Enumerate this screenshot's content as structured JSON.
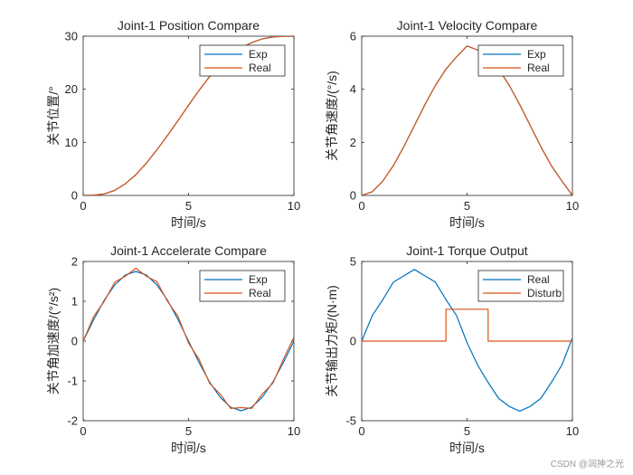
{
  "colors": {
    "exp": "#0072BD",
    "real": "#D95319",
    "axis": "#262626",
    "bg": "#ffffff"
  },
  "watermark": "CSDN @润抻之光",
  "chart_data": [
    {
      "id": "position",
      "type": "line",
      "title": "Joint-1 Position Compare",
      "xlabel": "时间/s",
      "ylabel": "关节位置/°",
      "xlim": [
        0,
        10
      ],
      "ylim": [
        0,
        30
      ],
      "xticks": [
        0,
        5,
        10
      ],
      "yticks": [
        0,
        10,
        20,
        30
      ],
      "legend": {
        "placement": "top-right",
        "entries": [
          "Exp",
          "Real"
        ]
      },
      "series": [
        {
          "name": "Exp",
          "color": "#0072BD",
          "x": [
            0,
            0.5,
            1,
            1.5,
            2,
            2.5,
            3,
            3.5,
            4,
            4.5,
            5,
            5.5,
            6,
            6.5,
            7,
            7.5,
            8,
            8.5,
            9,
            9.5,
            10
          ],
          "y": [
            0,
            0.04,
            0.29,
            0.96,
            2.2,
            3.9,
            6.1,
            8.6,
            11.3,
            14.1,
            17.0,
            19.8,
            22.4,
            24.6,
            26.4,
            27.8,
            28.8,
            29.5,
            29.85,
            29.98,
            30.0
          ]
        },
        {
          "name": "Real",
          "color": "#D95319",
          "x": [
            0,
            0.5,
            1,
            1.5,
            2,
            2.5,
            3,
            3.5,
            4,
            4.5,
            5,
            5.5,
            6,
            6.5,
            7,
            7.5,
            8,
            8.5,
            9,
            9.5,
            10
          ],
          "y": [
            0,
            0.04,
            0.29,
            0.96,
            2.2,
            3.9,
            6.1,
            8.6,
            11.3,
            14.1,
            17.0,
            19.8,
            22.4,
            24.6,
            26.4,
            27.8,
            28.8,
            29.5,
            29.85,
            29.98,
            30.0
          ]
        }
      ]
    },
    {
      "id": "velocity",
      "type": "line",
      "title": "Joint-1 Velocity Compare",
      "xlabel": "时间/s",
      "ylabel": "关节角速度/(°/s)",
      "xlim": [
        0,
        10
      ],
      "ylim": [
        0,
        6
      ],
      "xticks": [
        0,
        5,
        10
      ],
      "yticks": [
        0,
        2,
        4,
        6
      ],
      "legend": {
        "placement": "top-right",
        "entries": [
          "Exp",
          "Real"
        ]
      },
      "series": [
        {
          "name": "Exp",
          "color": "#0072BD",
          "x": [
            0,
            0.5,
            1,
            1.5,
            2,
            2.5,
            3,
            3.5,
            4,
            4.5,
            5,
            5.5,
            6,
            6.5,
            7,
            7.5,
            8,
            8.5,
            9,
            9.5,
            10
          ],
          "y": [
            0,
            0.14,
            0.54,
            1.12,
            1.84,
            2.63,
            3.42,
            4.15,
            4.76,
            5.22,
            5.63,
            5.48,
            5.22,
            4.76,
            4.15,
            3.42,
            2.63,
            1.84,
            1.12,
            0.54,
            0
          ]
        },
        {
          "name": "Real",
          "color": "#D95319",
          "x": [
            0,
            0.5,
            1,
            1.5,
            2,
            2.5,
            3,
            3.5,
            4,
            4.5,
            5,
            5.5,
            6,
            6.5,
            7,
            7.5,
            8,
            8.5,
            9,
            9.5,
            10
          ],
          "y": [
            0,
            0.14,
            0.54,
            1.12,
            1.84,
            2.63,
            3.42,
            4.15,
            4.76,
            5.22,
            5.63,
            5.48,
            5.22,
            4.76,
            4.15,
            3.42,
            2.63,
            1.84,
            1.12,
            0.54,
            0
          ]
        }
      ]
    },
    {
      "id": "accel",
      "type": "line",
      "title": "Joint-1 Accelerate Compare",
      "xlabel": "时间/s",
      "ylabel": "关节角加速度/(°/s²)",
      "xlim": [
        0,
        10
      ],
      "ylim": [
        -2,
        2
      ],
      "xticks": [
        0,
        5,
        10
      ],
      "yticks": [
        -2,
        -1,
        0,
        1,
        2
      ],
      "legend": {
        "placement": "top-right",
        "entries": [
          "Exp",
          "Real"
        ]
      },
      "series": [
        {
          "name": "Exp",
          "color": "#0072BD",
          "x": [
            0,
            0.5,
            1,
            1.5,
            2,
            2.5,
            3,
            3.5,
            4,
            4.5,
            5,
            5.5,
            6,
            6.5,
            7,
            7.5,
            8,
            8.5,
            9,
            9.5,
            10
          ],
          "y": [
            0,
            0.54,
            1.03,
            1.41,
            1.66,
            1.75,
            1.66,
            1.41,
            1.03,
            0.54,
            0,
            -0.54,
            -1.03,
            -1.41,
            -1.66,
            -1.75,
            -1.66,
            -1.41,
            -1.03,
            -0.54,
            0
          ]
        },
        {
          "name": "Real",
          "color": "#D95319",
          "x": [
            0,
            0.5,
            1,
            1.5,
            2,
            2.5,
            3,
            3.5,
            4,
            4.5,
            5,
            5.5,
            6,
            6.5,
            7,
            7.5,
            8,
            8.5,
            9,
            9.5,
            10
          ],
          "y": [
            0,
            0.62,
            1.0,
            1.48,
            1.63,
            1.83,
            1.63,
            1.49,
            1.0,
            0.62,
            -0.05,
            -0.46,
            -1.06,
            -1.33,
            -1.69,
            -1.67,
            -1.69,
            -1.33,
            -1.06,
            -0.46,
            0.1
          ]
        }
      ]
    },
    {
      "id": "torque",
      "type": "line",
      "title": "Joint-1 Torque Output",
      "xlabel": "时间/s",
      "ylabel": "关节输出力矩/(N·m)",
      "xlim": [
        0,
        10
      ],
      "ylim": [
        -5,
        5
      ],
      "xticks": [
        0,
        5,
        10
      ],
      "yticks": [
        -5,
        0,
        5
      ],
      "legend": {
        "placement": "top-right",
        "entries": [
          "Real",
          "Disturb"
        ]
      },
      "series": [
        {
          "name": "Real",
          "color": "#0072BD",
          "x": [
            0,
            0.5,
            1,
            1.5,
            2,
            2.5,
            3,
            3.5,
            4,
            4.5,
            5,
            5.5,
            6,
            6.5,
            7,
            7.5,
            8,
            8.5,
            9,
            9.5,
            10
          ],
          "y": [
            0,
            1.6,
            2.6,
            3.7,
            4.1,
            4.5,
            4.1,
            3.7,
            2.6,
            1.6,
            -0.1,
            -1.5,
            -2.6,
            -3.6,
            -4.1,
            -4.4,
            -4.1,
            -3.6,
            -2.6,
            -1.5,
            0.2
          ]
        },
        {
          "name": "Disturb",
          "color": "#D95319",
          "x": [
            0,
            4,
            4,
            6,
            6,
            10
          ],
          "y": [
            0,
            0,
            2,
            2,
            0,
            0
          ]
        }
      ]
    }
  ]
}
